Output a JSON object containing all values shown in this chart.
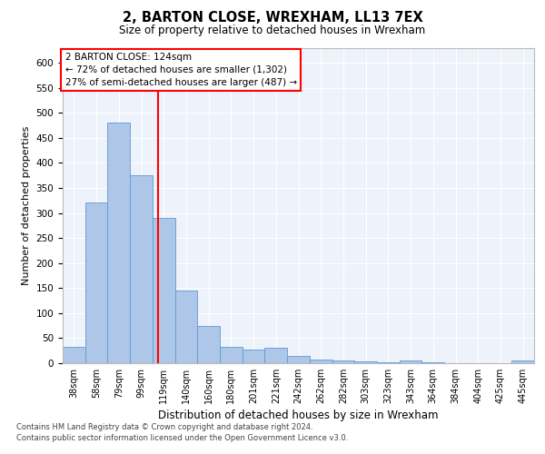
{
  "title1": "2, BARTON CLOSE, WREXHAM, LL13 7EX",
  "title2": "Size of property relative to detached houses in Wrexham",
  "xlabel": "Distribution of detached houses by size in Wrexham",
  "ylabel": "Number of detached properties",
  "categories": [
    "38sqm",
    "58sqm",
    "79sqm",
    "99sqm",
    "119sqm",
    "140sqm",
    "160sqm",
    "180sqm",
    "201sqm",
    "221sqm",
    "242sqm",
    "262sqm",
    "282sqm",
    "303sqm",
    "323sqm",
    "343sqm",
    "364sqm",
    "384sqm",
    "404sqm",
    "425sqm",
    "445sqm"
  ],
  "values": [
    32,
    320,
    480,
    375,
    290,
    145,
    75,
    32,
    28,
    30,
    15,
    8,
    5,
    3,
    2,
    5,
    2,
    0,
    0,
    0,
    5
  ],
  "bar_color": "#aec6e8",
  "bar_edge_color": "#5b9bd5",
  "red_line_x": 4.25,
  "annotation_text": "2 BARTON CLOSE: 124sqm\n← 72% of detached houses are smaller (1,302)\n27% of semi-detached houses are larger (487) →",
  "ylim": [
    0,
    630
  ],
  "yticks": [
    0,
    50,
    100,
    150,
    200,
    250,
    300,
    350,
    400,
    450,
    500,
    550,
    600
  ],
  "background_color": "#eef2fa",
  "grid_color": "#ffffff",
  "footer_line1": "Contains HM Land Registry data © Crown copyright and database right 2024.",
  "footer_line2": "Contains public sector information licensed under the Open Government Licence v3.0."
}
